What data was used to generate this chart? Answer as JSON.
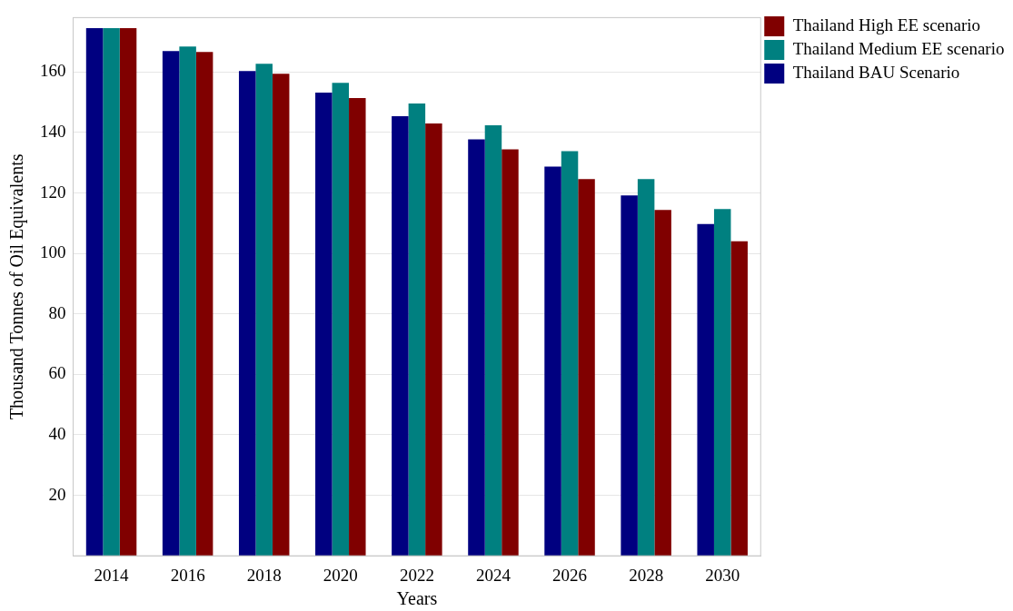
{
  "chart_data": {
    "type": "bar",
    "xlabel": "Years",
    "ylabel": "Thousand Tonnes of Oil Equivalents",
    "categories": [
      "2014",
      "2016",
      "2018",
      "2020",
      "2022",
      "2024",
      "2026",
      "2028",
      "2030"
    ],
    "series": [
      {
        "name": "Thailand BAU Scenario",
        "color": "#000080",
        "values": [
          174.5,
          166.9,
          160.3,
          153.2,
          145.4,
          137.7,
          128.7,
          119.2,
          109.7
        ]
      },
      {
        "name": "Thailand Medium EE scenario",
        "color": "#008080",
        "values": [
          174.5,
          168.4,
          162.7,
          156.4,
          149.6,
          142.4,
          133.8,
          124.6,
          114.7
        ]
      },
      {
        "name": "Thailand High EE scenario",
        "color": "#800000",
        "values": [
          174.5,
          166.6,
          159.4,
          151.4,
          143.0,
          134.4,
          124.6,
          114.4,
          104.0
        ]
      }
    ],
    "ylim": [
      0,
      178
    ],
    "yticks": [
      20,
      40,
      60,
      80,
      100,
      120,
      140,
      160
    ],
    "grid": "y",
    "legend": "top right"
  }
}
